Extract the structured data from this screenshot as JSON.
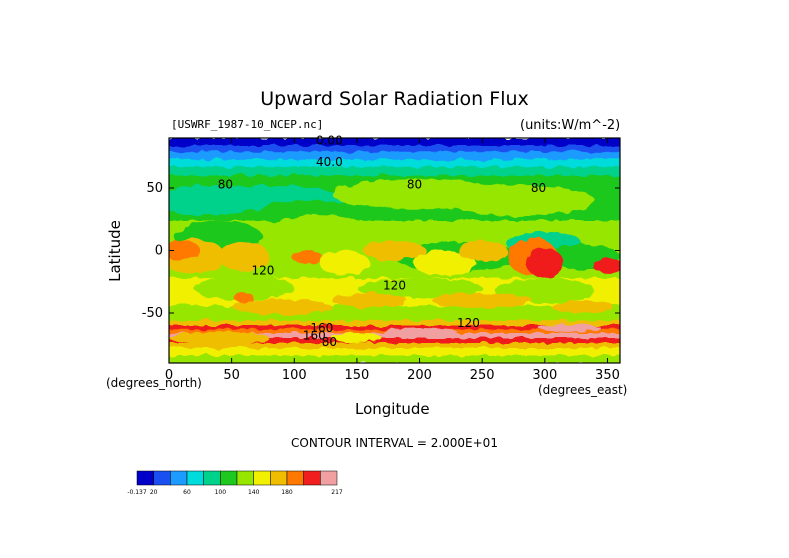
{
  "chart_data": {
    "type": "heatmap",
    "subtype": "filled-contour map",
    "title": "Upward Solar Radiation Flux",
    "file_label": "[USWRF_1987-10_NCEP.nc]",
    "units_label": "(units:W/m^-2)",
    "xlabel": "Longitude",
    "ylabel": "Latitude",
    "x_unit_label": "(degrees_east)",
    "y_unit_label": "(degrees_north)",
    "contour_interval_label": "CONTOUR INTERVAL = 2.000E+01",
    "xlim": [
      0,
      360
    ],
    "ylim": [
      -90,
      90
    ],
    "x_ticks": [
      0,
      50,
      100,
      150,
      200,
      250,
      300,
      350
    ],
    "y_ticks": [
      -50,
      0,
      50
    ],
    "contour_labels": [
      {
        "text": "0.00",
        "lon": 128,
        "lat": 88
      },
      {
        "text": "40.0",
        "lon": 128,
        "lat": 71
      },
      {
        "text": "80",
        "lon": 196,
        "lat": 53
      },
      {
        "text": "80",
        "lon": 295,
        "lat": 50
      },
      {
        "text": "80",
        "lon": 45,
        "lat": 53
      },
      {
        "text": "120",
        "lon": 75,
        "lat": -16
      },
      {
        "text": "120",
        "lon": 180,
        "lat": -28
      },
      {
        "text": "120",
        "lon": 239,
        "lat": -58
      },
      {
        "text": "160",
        "lon": 122,
        "lat": -62
      },
      {
        "text": "160",
        "lon": 116,
        "lat": -68
      },
      {
        "text": "80",
        "lon": 128,
        "lat": -73
      }
    ],
    "colorbar": {
      "tick_labels": [
        "-0.137",
        "20",
        "60",
        "100",
        "140",
        "180",
        "217"
      ],
      "colors": [
        "#0000c8",
        "#1a50f0",
        "#1e9bff",
        "#00dcdc",
        "#00d28c",
        "#1ec81e",
        "#96e600",
        "#f0f000",
        "#f0be00",
        "#ff7800",
        "#f01e1e",
        "#f0a0a0"
      ]
    },
    "grid": false,
    "legend": "colorbar bottom-left"
  }
}
